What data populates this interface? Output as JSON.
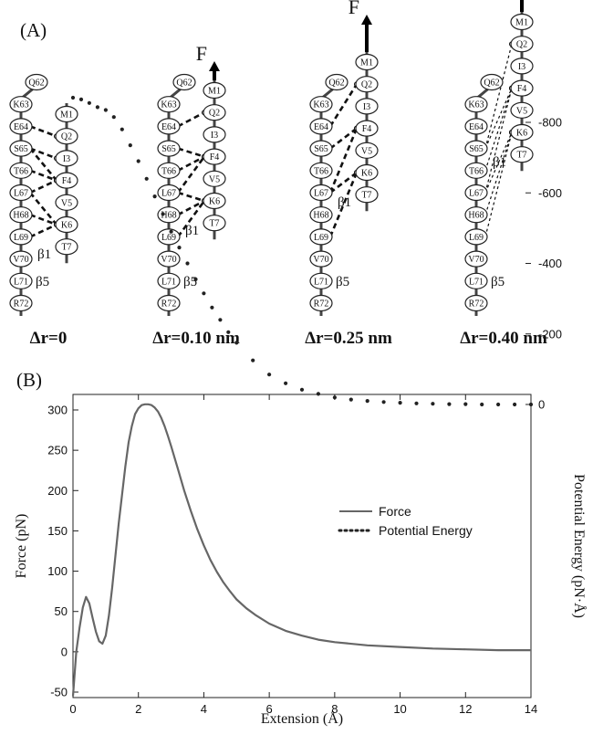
{
  "panel_a": {
    "label": "(A)",
    "force_label": "F",
    "left_strand_label": "β5",
    "right_strand_label": "β1",
    "left_residues": [
      "Q62",
      "K63",
      "E64",
      "S65",
      "T66",
      "L67",
      "H68",
      "L69",
      "V70",
      "L71",
      "R72"
    ],
    "right_residues": [
      "M1",
      "Q2",
      "I3",
      "F4",
      "V5",
      "K6",
      "T7"
    ],
    "states": [
      {
        "label": "Δr=0",
        "has_force": false,
        "bonds": [
          [
            2,
            1
          ],
          [
            3,
            2
          ],
          [
            3,
            3
          ],
          [
            4,
            3
          ],
          [
            5,
            3
          ],
          [
            5,
            5
          ],
          [
            6,
            5
          ],
          [
            7,
            5
          ]
        ]
      },
      {
        "label": "Δr=0.10 nm",
        "has_force": true,
        "bonds": [
          [
            2,
            1
          ],
          [
            3,
            3
          ],
          [
            4,
            3
          ],
          [
            5,
            3
          ],
          [
            5,
            5
          ],
          [
            6,
            5
          ],
          [
            7,
            5
          ]
        ]
      },
      {
        "label": "Δr=0.25 nm",
        "has_force": true,
        "bonds": [
          [
            2,
            1
          ],
          [
            3,
            3
          ],
          [
            5,
            3
          ],
          [
            5,
            5
          ],
          [
            7,
            5
          ]
        ]
      },
      {
        "label": "Δr=0.40 nm",
        "has_force": true,
        "bonds": [
          [
            3,
            1
          ],
          [
            3,
            3
          ],
          [
            4,
            3
          ],
          [
            5,
            3
          ],
          [
            5,
            5
          ],
          [
            6,
            5
          ],
          [
            7,
            5
          ]
        ]
      }
    ]
  },
  "panel_b": {
    "label": "(B)"
  },
  "chart_data": {
    "type": "line",
    "xlabel": "Extension (Å)",
    "ylabel": "Force (pN)",
    "y2label": "Potential Energy (pN·Å)",
    "xlim": [
      0,
      14
    ],
    "ylim": [
      -60,
      315
    ],
    "y2lim": [
      -900,
      20
    ],
    "xticks": [
      0,
      2,
      4,
      6,
      8,
      10,
      12,
      14
    ],
    "yticks": [
      -50,
      0,
      50,
      100,
      150,
      200,
      250,
      300
    ],
    "y2ticks": [
      0,
      -200,
      -400,
      -600,
      -800
    ],
    "grid": false,
    "legend_position": "right-center",
    "series": [
      {
        "name": "Force",
        "axis": "left",
        "style": "solid",
        "x": [
          0,
          0.1,
          0.2,
          0.3,
          0.4,
          0.5,
          0.6,
          0.7,
          0.8,
          0.9,
          1.0,
          1.1,
          1.2,
          1.3,
          1.4,
          1.5,
          1.6,
          1.7,
          1.8,
          1.9,
          2.0,
          2.1,
          2.2,
          2.3,
          2.4,
          2.5,
          2.6,
          2.7,
          2.8,
          2.9,
          3.0,
          3.2,
          3.4,
          3.6,
          3.8,
          4.0,
          4.2,
          4.4,
          4.6,
          4.8,
          5.0,
          5.3,
          5.6,
          6.0,
          6.5,
          7.0,
          7.5,
          8.0,
          9.0,
          10.0,
          11.0,
          12.0,
          13.0,
          14.0
        ],
        "y": [
          -55,
          0,
          30,
          55,
          68,
          60,
          42,
          25,
          13,
          10,
          20,
          45,
          80,
          120,
          160,
          195,
          230,
          260,
          280,
          295,
          302,
          306,
          307,
          307,
          306,
          303,
          298,
          290,
          280,
          268,
          255,
          228,
          200,
          175,
          152,
          132,
          114,
          99,
          86,
          75,
          65,
          54,
          45,
          35,
          26,
          20,
          15,
          12,
          8,
          6,
          4,
          3,
          2,
          2
        ]
      },
      {
        "name": "Potential Energy",
        "axis": "right",
        "style": "dotted",
        "x": [
          0,
          0.25,
          0.5,
          0.75,
          1.0,
          1.25,
          1.5,
          1.75,
          2.0,
          2.25,
          2.5,
          2.75,
          3.0,
          3.25,
          3.5,
          3.75,
          4.0,
          4.25,
          4.5,
          4.75,
          5.0,
          5.5,
          6.0,
          6.5,
          7.0,
          7.5,
          8.0,
          8.5,
          9.0,
          9.5,
          10.0,
          10.5,
          11.0,
          11.5,
          12.0,
          12.5,
          13.0,
          13.5,
          14.0
        ],
        "y": [
          -870,
          -865,
          -855,
          -843,
          -835,
          -815,
          -780,
          -735,
          -690,
          -640,
          -590,
          -540,
          -490,
          -445,
          -400,
          -355,
          -315,
          -275,
          -240,
          -205,
          -175,
          -125,
          -85,
          -60,
          -42,
          -30,
          -20,
          -14,
          -10,
          -7,
          -5,
          -3,
          -2,
          -1,
          -1,
          0,
          0,
          0,
          0
        ]
      }
    ]
  }
}
